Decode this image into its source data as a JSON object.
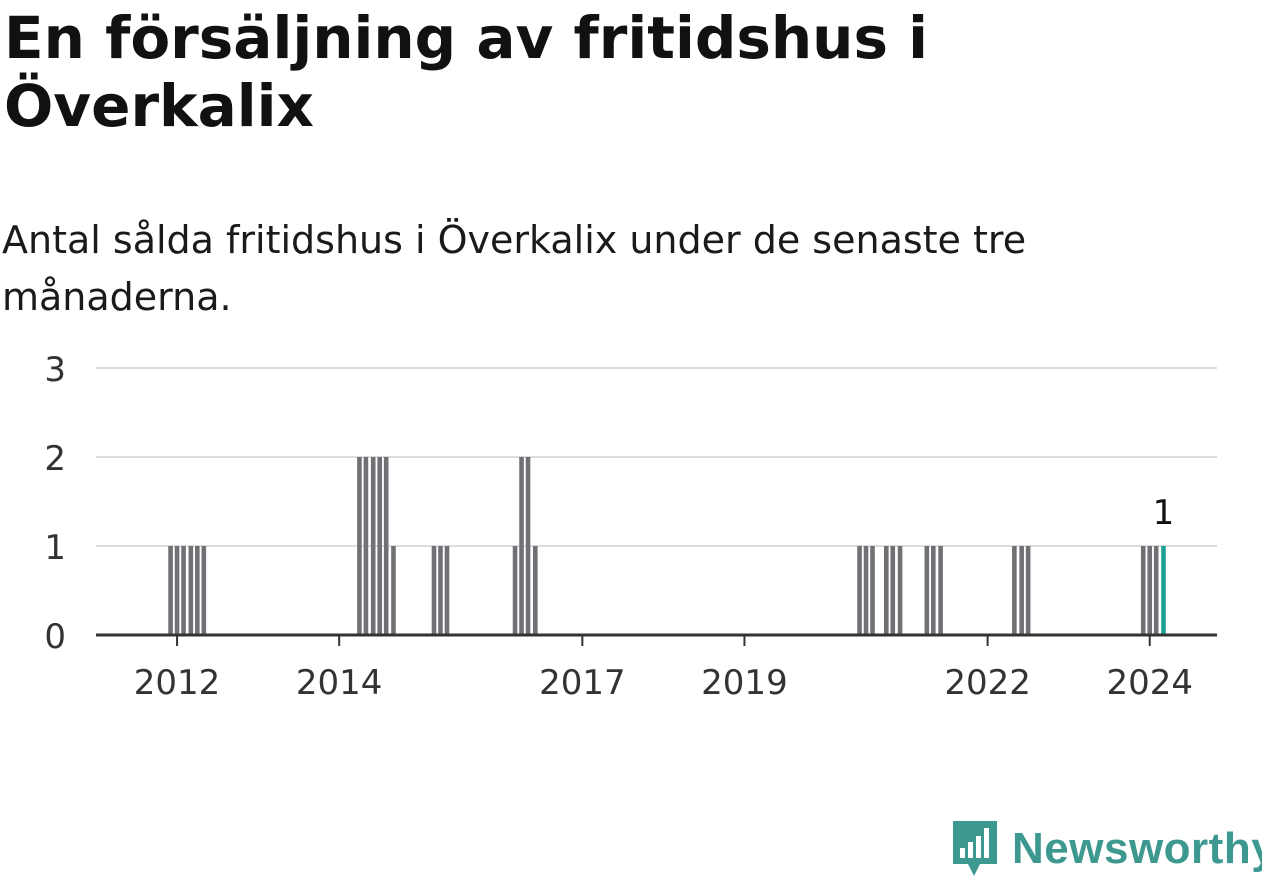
{
  "title": "En försäljning av fritidshus i Överkalix",
  "subtitle": "Antal sålda fritidshus i Överkalix under de senaste tre månaderna.",
  "brand": {
    "name": "Newsworthy",
    "color": "#3d9990"
  },
  "colors": {
    "bar": "#717075",
    "highlight": "#1aa093",
    "grid": "#dcdcdc",
    "axis": "#333333"
  },
  "chart_data": {
    "type": "bar",
    "ylim": [
      0,
      3
    ],
    "yticks": [
      "0",
      "1",
      "2",
      "3"
    ],
    "xticks": [
      {
        "label": "2012",
        "x": 2012.0
      },
      {
        "label": "2014",
        "x": 2014.0
      },
      {
        "label": "2017",
        "x": 2017.0
      },
      {
        "label": "2019",
        "x": 2019.0
      },
      {
        "label": "2022",
        "x": 2022.0
      },
      {
        "label": "2024",
        "x": 2024.0
      }
    ],
    "annotation": {
      "text": "1",
      "x": 2024.17
    },
    "series": [
      {
        "points": [
          {
            "x": 2011.0,
            "y": 0
          },
          {
            "x": 2011.92,
            "y": 1
          },
          {
            "x": 2012.0,
            "y": 1
          },
          {
            "x": 2012.08,
            "y": 1
          },
          {
            "x": 2012.17,
            "y": 1
          },
          {
            "x": 2012.25,
            "y": 1
          },
          {
            "x": 2012.33,
            "y": 1
          },
          {
            "x": 2014.25,
            "y": 2
          },
          {
            "x": 2014.33,
            "y": 2
          },
          {
            "x": 2014.42,
            "y": 2
          },
          {
            "x": 2014.5,
            "y": 2
          },
          {
            "x": 2014.58,
            "y": 2
          },
          {
            "x": 2014.67,
            "y": 1
          },
          {
            "x": 2015.17,
            "y": 1
          },
          {
            "x": 2015.25,
            "y": 1
          },
          {
            "x": 2015.33,
            "y": 1
          },
          {
            "x": 2016.17,
            "y": 1
          },
          {
            "x": 2016.25,
            "y": 2
          },
          {
            "x": 2016.33,
            "y": 2
          },
          {
            "x": 2016.42,
            "y": 1
          },
          {
            "x": 2020.42,
            "y": 1
          },
          {
            "x": 2020.5,
            "y": 1
          },
          {
            "x": 2020.58,
            "y": 1
          },
          {
            "x": 2020.75,
            "y": 1
          },
          {
            "x": 2020.83,
            "y": 1
          },
          {
            "x": 2020.92,
            "y": 1
          },
          {
            "x": 2021.25,
            "y": 1
          },
          {
            "x": 2021.33,
            "y": 1
          },
          {
            "x": 2021.42,
            "y": 1
          },
          {
            "x": 2022.33,
            "y": 1
          },
          {
            "x": 2022.42,
            "y": 1
          },
          {
            "x": 2022.5,
            "y": 1
          },
          {
            "x": 2023.92,
            "y": 1
          },
          {
            "x": 2024.0,
            "y": 1
          },
          {
            "x": 2024.08,
            "y": 1
          },
          {
            "x": 2024.17,
            "y": 1,
            "highlight": true
          }
        ]
      }
    ]
  }
}
